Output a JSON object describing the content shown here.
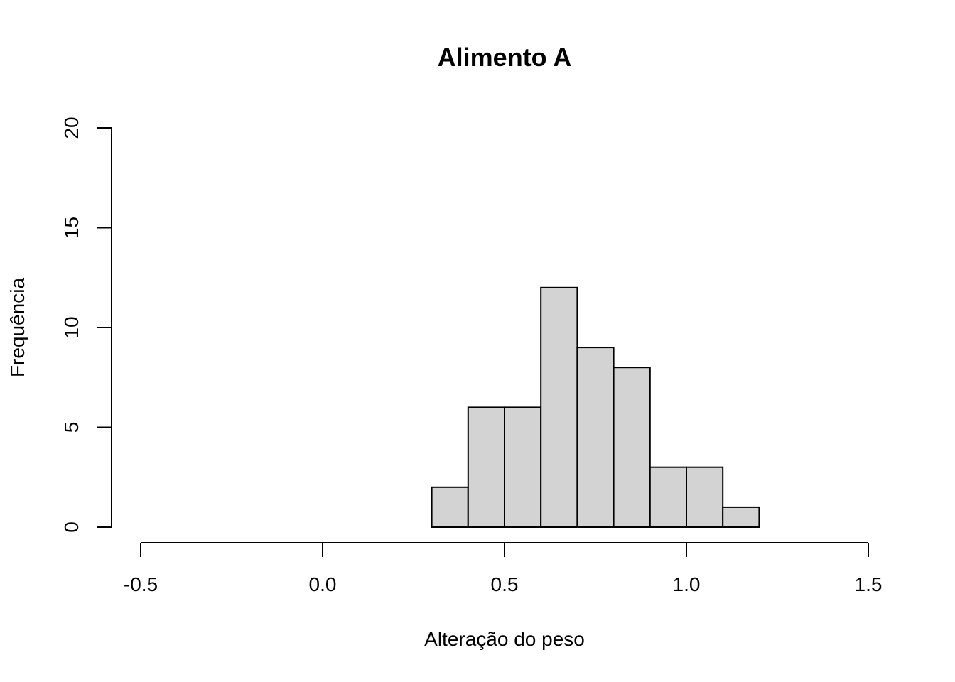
{
  "chart_data": {
    "type": "bar",
    "subtype": "histogram",
    "title": "Alimento A",
    "xlabel": "Alteração do peso",
    "ylabel": "Frequência",
    "xlim": [
      -0.5,
      1.5
    ],
    "ylim": [
      0,
      20
    ],
    "x_ticks": [
      -0.5,
      0.0,
      0.5,
      1.0,
      1.5
    ],
    "x_tick_labels": [
      "-0.5",
      "0.0",
      "0.5",
      "1.0",
      "1.5"
    ],
    "y_ticks": [
      0,
      5,
      10,
      15,
      20
    ],
    "y_tick_labels": [
      "0",
      "5",
      "10",
      "15",
      "20"
    ],
    "bins": [
      {
        "start": 0.3,
        "end": 0.4,
        "count": 2
      },
      {
        "start": 0.4,
        "end": 0.5,
        "count": 6
      },
      {
        "start": 0.5,
        "end": 0.6,
        "count": 6
      },
      {
        "start": 0.6,
        "end": 0.7,
        "count": 12
      },
      {
        "start": 0.7,
        "end": 0.8,
        "count": 9
      },
      {
        "start": 0.8,
        "end": 0.9,
        "count": 8
      },
      {
        "start": 0.9,
        "end": 1.0,
        "count": 3
      },
      {
        "start": 1.0,
        "end": 1.1,
        "count": 3
      },
      {
        "start": 1.1,
        "end": 1.2,
        "count": 1
      }
    ],
    "bar_color": "#d3d3d3",
    "edge_color": "#000000",
    "grid": false,
    "legend": "none"
  }
}
